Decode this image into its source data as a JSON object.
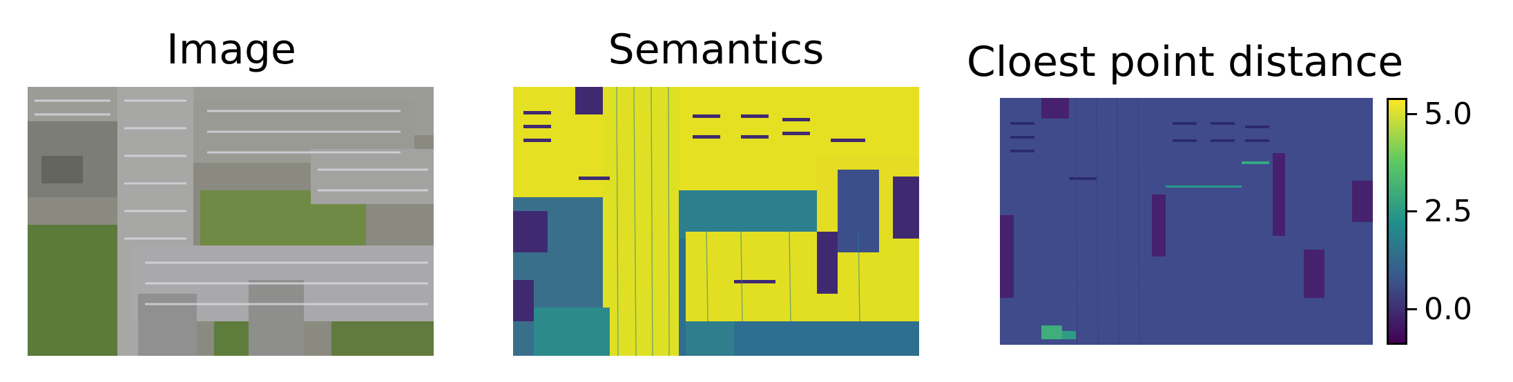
{
  "panels": {
    "image": {
      "title": "Image"
    },
    "semantics": {
      "title": "Semantics"
    },
    "distance": {
      "title": "Cloest point distance"
    }
  },
  "colorbar": {
    "colormap": "viridis",
    "ticks": [
      "5.0",
      "2.5",
      "0.0"
    ],
    "colors": [
      "#440154",
      "#3b528b",
      "#21918c",
      "#5ec962",
      "#fde725"
    ]
  }
}
